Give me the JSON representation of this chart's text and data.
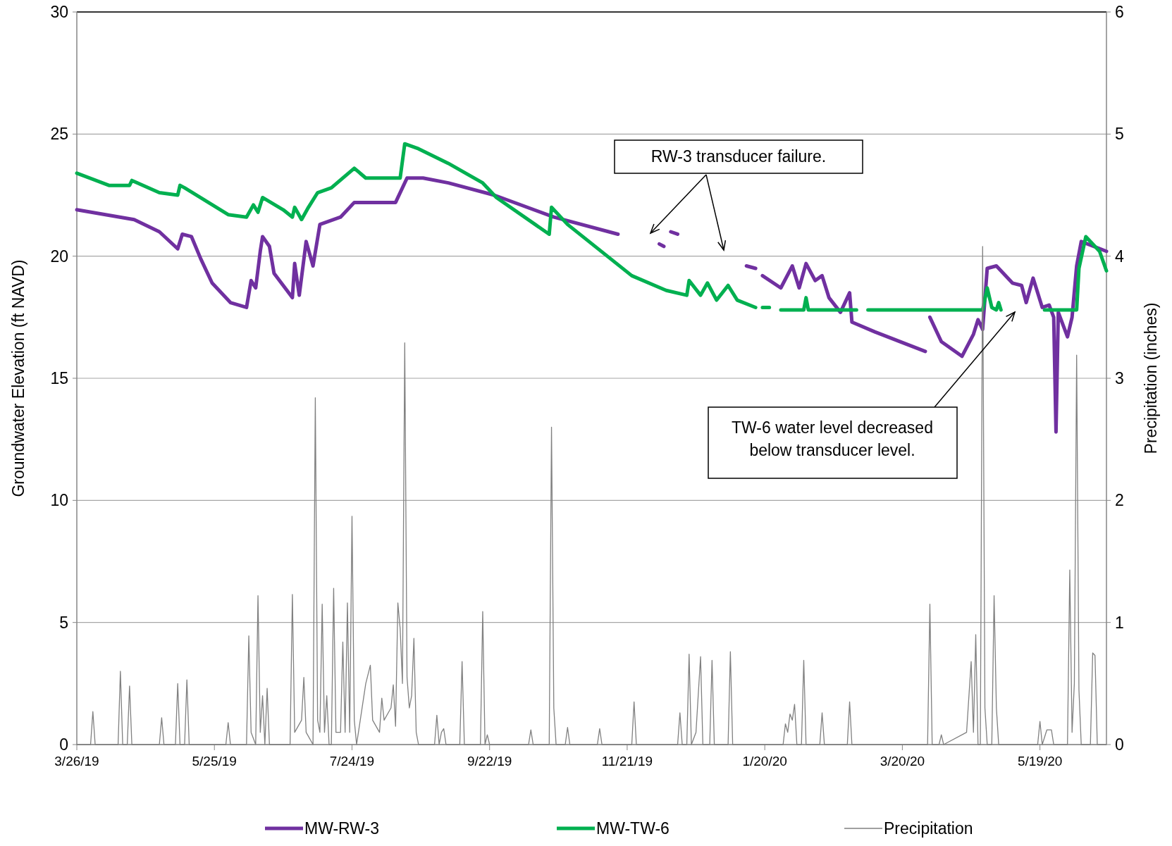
{
  "chart_data": {
    "type": "line",
    "ylabel": "Groundwater Elevation (ft NAVD)",
    "y2label": "Precipitation (inches)",
    "xlim": [
      "2019-03-26",
      "2020-06-17"
    ],
    "xticks": [
      {
        "value": "2019-03-26",
        "label": "3/26/19"
      },
      {
        "value": "2019-05-25",
        "label": "5/25/19"
      },
      {
        "value": "2019-07-24",
        "label": "7/24/19"
      },
      {
        "value": "2019-09-22",
        "label": "9/22/19"
      },
      {
        "value": "2019-11-21",
        "label": "11/21/19"
      },
      {
        "value": "2020-01-20",
        "label": "1/20/20"
      },
      {
        "value": "2020-03-20",
        "label": "3/20/20"
      },
      {
        "value": "2020-05-19",
        "label": "5/19/20"
      }
    ],
    "ylim": [
      0,
      30
    ],
    "yticks": [
      0,
      5,
      10,
      15,
      20,
      25,
      30
    ],
    "y2lim": [
      0,
      6
    ],
    "y2ticks": [
      0,
      1,
      2,
      3,
      4,
      5,
      6
    ],
    "grid": "y",
    "legend": "bottom",
    "annotations": [
      "RW-3 transducer failure.",
      "TW-6 water level decreased below transducer level."
    ],
    "series": [
      {
        "name": "MW-RW-3",
        "color": "#7030a0",
        "x": [
          "2019-03-26",
          "2019-04-20",
          "2019-05-01",
          "2019-05-09",
          "2019-05-11",
          "2019-05-15",
          "2019-05-19",
          "2019-05-24",
          "2019-06-01",
          "2019-06-08",
          "2019-06-10",
          "2019-06-12",
          "2019-06-14",
          "2019-06-15",
          "2019-06-18",
          "2019-06-20",
          "2019-06-28",
          "2019-06-29",
          "2019-07-01",
          "2019-07-04",
          "2019-07-07",
          "2019-07-10",
          "2019-07-19",
          "2019-07-25",
          "2019-08-12",
          "2019-08-17",
          "2019-08-24",
          "2019-09-04",
          "2019-09-24",
          "2019-10-20",
          "2019-11-17",
          "2019-11-18",
          "2019-12-05",
          "2019-12-07",
          "2019-12-08",
          "2019-12-10",
          "2019-12-13",
          "2019-12-14",
          "2020-01-12",
          "2020-01-16",
          "2020-01-17",
          "2020-01-19",
          "2020-01-27",
          "2020-02-01",
          "2020-02-04",
          "2020-02-07",
          "2020-02-11",
          "2020-02-14",
          "2020-02-17",
          "2020-02-22",
          "2020-02-26",
          "2020-02-27",
          "2020-03-08",
          "2020-03-30",
          "2020-03-31",
          "2020-04-01",
          "2020-04-06",
          "2020-04-15",
          "2020-04-20",
          "2020-04-22",
          "2020-04-24",
          "2020-04-26",
          "2020-04-30",
          "2020-05-07",
          "2020-05-11",
          "2020-05-13",
          "2020-05-16",
          "2020-05-20",
          "2020-05-23",
          "2020-05-25",
          "2020-05-26",
          "2020-05-27",
          "2020-05-31",
          "2020-06-02",
          "2020-06-04",
          "2020-06-06",
          "2020-06-17"
        ],
        "values": [
          21.9,
          21.5,
          21.0,
          20.3,
          20.9,
          20.8,
          19.9,
          18.9,
          18.1,
          17.9,
          19.0,
          18.7,
          20.2,
          20.8,
          20.4,
          19.3,
          18.3,
          19.7,
          18.4,
          20.6,
          19.6,
          21.3,
          21.6,
          22.2,
          22.2,
          23.2,
          23.2,
          23.0,
          22.5,
          21.6,
          20.9,
          null,
          20.5,
          20.4,
          null,
          21.0,
          20.9,
          null,
          19.6,
          19.5,
          null,
          19.2,
          18.7,
          19.6,
          18.7,
          19.7,
          19.0,
          19.2,
          18.3,
          17.7,
          18.5,
          17.3,
          16.9,
          16.1,
          null,
          17.5,
          16.5,
          15.9,
          16.8,
          17.4,
          17.0,
          19.5,
          19.6,
          18.9,
          18.8,
          18.1,
          19.1,
          17.9,
          18.0,
          17.5,
          12.8,
          17.7,
          16.7,
          17.5,
          19.6,
          20.6,
          20.2
        ]
      },
      {
        "name": "MW-TW-6",
        "color": "#00b050",
        "x": [
          "2019-03-26",
          "2019-04-09",
          "2019-04-18",
          "2019-04-19",
          "2019-05-01",
          "2019-05-09",
          "2019-05-10",
          "2019-05-12",
          "2019-05-31",
          "2019-06-08",
          "2019-06-11",
          "2019-06-13",
          "2019-06-15",
          "2019-06-24",
          "2019-06-28",
          "2019-06-29",
          "2019-07-02",
          "2019-07-05",
          "2019-07-09",
          "2019-07-15",
          "2019-07-25",
          "2019-07-30",
          "2019-08-09",
          "2019-08-14",
          "2019-08-16",
          "2019-08-22",
          "2019-09-04",
          "2019-09-19",
          "2019-09-25",
          "2019-10-18",
          "2019-10-19",
          "2019-10-26",
          "2019-11-23",
          "2019-12-08",
          "2019-12-17",
          "2019-12-18",
          "2019-12-23",
          "2019-12-26",
          "2019-12-30",
          "2020-01-04",
          "2020-01-08",
          "2020-01-16",
          "2020-01-17",
          "2020-01-19",
          "2020-01-22",
          "2020-01-24",
          "2020-01-27",
          "2020-02-06",
          "2020-02-07",
          "2020-02-08",
          "2020-02-29",
          "2020-03-02",
          "2020-03-05",
          "2020-04-24",
          "2020-04-26",
          "2020-04-28",
          "2020-04-30",
          "2020-05-01",
          "2020-05-02",
          "2020-05-10",
          "2020-05-21",
          "2020-06-04",
          "2020-06-05",
          "2020-06-08",
          "2020-06-14",
          "2020-06-17"
        ],
        "values": [
          23.4,
          22.9,
          22.9,
          23.1,
          22.6,
          22.5,
          22.9,
          22.8,
          21.7,
          21.6,
          22.1,
          21.8,
          22.4,
          21.9,
          21.6,
          22.0,
          21.5,
          22.0,
          22.6,
          22.8,
          23.6,
          23.2,
          23.2,
          23.2,
          24.6,
          24.4,
          23.8,
          23.0,
          22.4,
          20.9,
          22.0,
          21.3,
          19.2,
          18.6,
          18.4,
          19.0,
          18.4,
          18.9,
          18.2,
          18.8,
          18.2,
          17.9,
          null,
          17.9,
          17.9,
          null,
          17.8,
          17.8,
          18.3,
          17.8,
          17.8,
          null,
          17.8,
          17.8,
          18.7,
          17.9,
          17.8,
          18.1,
          17.8,
          null,
          17.8,
          17.8,
          19.5,
          20.8,
          20.2,
          19.4
        ]
      },
      {
        "name": "Precipitation",
        "color": "#808080",
        "axis": "y2",
        "x": [
          "2019-03-26",
          "2019-04-01",
          "2019-04-02",
          "2019-04-03",
          "2019-04-13",
          "2019-04-14",
          "2019-04-15",
          "2019-04-17",
          "2019-04-18",
          "2019-04-19",
          "2019-05-01",
          "2019-05-02",
          "2019-05-03",
          "2019-05-08",
          "2019-05-09",
          "2019-05-10",
          "2019-05-12",
          "2019-05-13",
          "2019-05-14",
          "2019-05-30",
          "2019-05-31",
          "2019-06-01",
          "2019-06-08",
          "2019-06-09",
          "2019-06-10",
          "2019-06-12",
          "2019-06-13",
          "2019-06-14",
          "2019-06-15",
          "2019-06-16",
          "2019-06-17",
          "2019-06-18",
          "2019-06-27",
          "2019-06-28",
          "2019-06-29",
          "2019-07-02",
          "2019-07-03",
          "2019-07-04",
          "2019-07-07",
          "2019-07-08",
          "2019-07-09",
          "2019-07-10",
          "2019-07-11",
          "2019-07-12",
          "2019-07-13",
          "2019-07-14",
          "2019-07-15",
          "2019-07-16",
          "2019-07-17",
          "2019-07-19",
          "2019-07-20",
          "2019-07-21",
          "2019-07-22",
          "2019-07-23",
          "2019-07-24",
          "2019-07-25",
          "2019-07-26",
          "2019-07-30",
          "2019-08-01",
          "2019-08-02",
          "2019-08-05",
          "2019-08-06",
          "2019-08-07",
          "2019-08-10",
          "2019-08-11",
          "2019-08-12",
          "2019-08-13",
          "2019-08-14",
          "2019-08-15",
          "2019-08-16",
          "2019-08-17",
          "2019-08-18",
          "2019-08-19",
          "2019-08-20",
          "2019-08-21",
          "2019-08-22",
          "2019-08-29",
          "2019-08-30",
          "2019-08-31",
          "2019-09-01",
          "2019-09-02",
          "2019-09-03",
          "2019-09-09",
          "2019-09-10",
          "2019-09-11",
          "2019-09-18",
          "2019-09-19",
          "2019-09-20",
          "2019-09-21",
          "2019-09-22",
          "2019-10-09",
          "2019-10-10",
          "2019-10-11",
          "2019-10-18",
          "2019-10-19",
          "2019-10-20",
          "2019-10-21",
          "2019-10-25",
          "2019-10-26",
          "2019-10-27",
          "2019-11-08",
          "2019-11-09",
          "2019-11-10",
          "2019-11-23",
          "2019-11-24",
          "2019-11-25",
          "2019-12-13",
          "2019-12-14",
          "2019-12-15",
          "2019-12-17",
          "2019-12-18",
          "2019-12-19",
          "2019-12-21",
          "2019-12-23",
          "2019-12-24",
          "2019-12-27",
          "2019-12-28",
          "2019-12-29",
          "2020-01-04",
          "2020-01-05",
          "2020-01-06",
          "2020-01-28",
          "2020-01-29",
          "2020-01-30",
          "2020-01-31",
          "2020-02-01",
          "2020-02-02",
          "2020-02-03",
          "2020-02-05",
          "2020-02-06",
          "2020-02-07",
          "2020-02-13",
          "2020-02-14",
          "2020-02-15",
          "2020-02-25",
          "2020-02-26",
          "2020-02-27",
          "2020-03-31",
          "2020-04-01",
          "2020-04-02",
          "2020-04-05",
          "2020-04-06",
          "2020-04-07",
          "2020-04-17",
          "2020-04-19",
          "2020-04-20",
          "2020-04-21",
          "2020-04-22",
          "2020-04-23",
          "2020-04-24",
          "2020-04-25",
          "2020-04-26",
          "2020-04-28",
          "2020-04-29",
          "2020-04-30",
          "2020-05-01",
          "2020-05-18",
          "2020-05-19",
          "2020-05-20",
          "2020-05-22",
          "2020-05-24",
          "2020-05-25",
          "2020-05-31",
          "2020-06-01",
          "2020-06-02",
          "2020-06-03",
          "2020-06-04",
          "2020-06-05",
          "2020-06-06",
          "2020-06-10",
          "2020-06-11",
          "2020-06-12",
          "2020-06-13",
          "2020-06-17"
        ],
        "values": [
          0,
          0,
          0.27,
          0,
          0,
          0.6,
          0,
          0,
          0.48,
          0,
          0,
          0.22,
          0,
          0,
          0.5,
          0,
          0,
          0.53,
          0,
          0,
          0.18,
          0,
          0,
          0.89,
          0.1,
          0,
          1.22,
          0.1,
          0.4,
          0,
          0.46,
          0,
          0,
          1.23,
          0.1,
          0.2,
          0.55,
          0.1,
          0,
          2.84,
          0.2,
          0.1,
          1.15,
          0.1,
          0.4,
          0,
          0,
          1.28,
          0.1,
          0.1,
          0.84,
          0.1,
          1.16,
          0.1,
          1.87,
          0.2,
          0,
          0.5,
          0.65,
          0.2,
          0.1,
          0.38,
          0.2,
          0.3,
          0.49,
          0.15,
          1.16,
          0.95,
          0.5,
          3.29,
          0.55,
          0.3,
          0.4,
          0.87,
          0.1,
          0,
          0,
          0.24,
          0,
          0.1,
          0.13,
          0,
          0,
          0.68,
          0,
          0,
          1.09,
          0,
          0.08,
          0,
          0,
          0.12,
          0,
          0,
          2.6,
          0.3,
          0,
          0,
          0.14,
          0,
          0,
          0.13,
          0,
          0,
          0.35,
          0,
          0,
          0.26,
          0,
          0,
          0.74,
          0,
          0.1,
          0.72,
          0,
          0,
          0.69,
          0,
          0,
          0.76,
          0,
          0,
          0.17,
          0.1,
          0.25,
          0.2,
          0.33,
          0,
          0,
          0.69,
          0,
          0,
          0.26,
          0,
          0,
          0.35,
          0,
          0,
          1.15,
          0,
          0,
          0.08,
          0,
          0.1,
          0.68,
          0.1,
          0.9,
          0,
          0,
          4.08,
          0.3,
          0,
          0,
          1.22,
          0.3,
          0,
          0,
          0.19,
          0,
          0.12,
          0.12,
          0,
          0,
          1.43,
          0.1,
          0.5,
          3.19,
          0.45,
          0,
          0,
          0.75,
          0.73,
          0,
          0
        ]
      }
    ]
  }
}
